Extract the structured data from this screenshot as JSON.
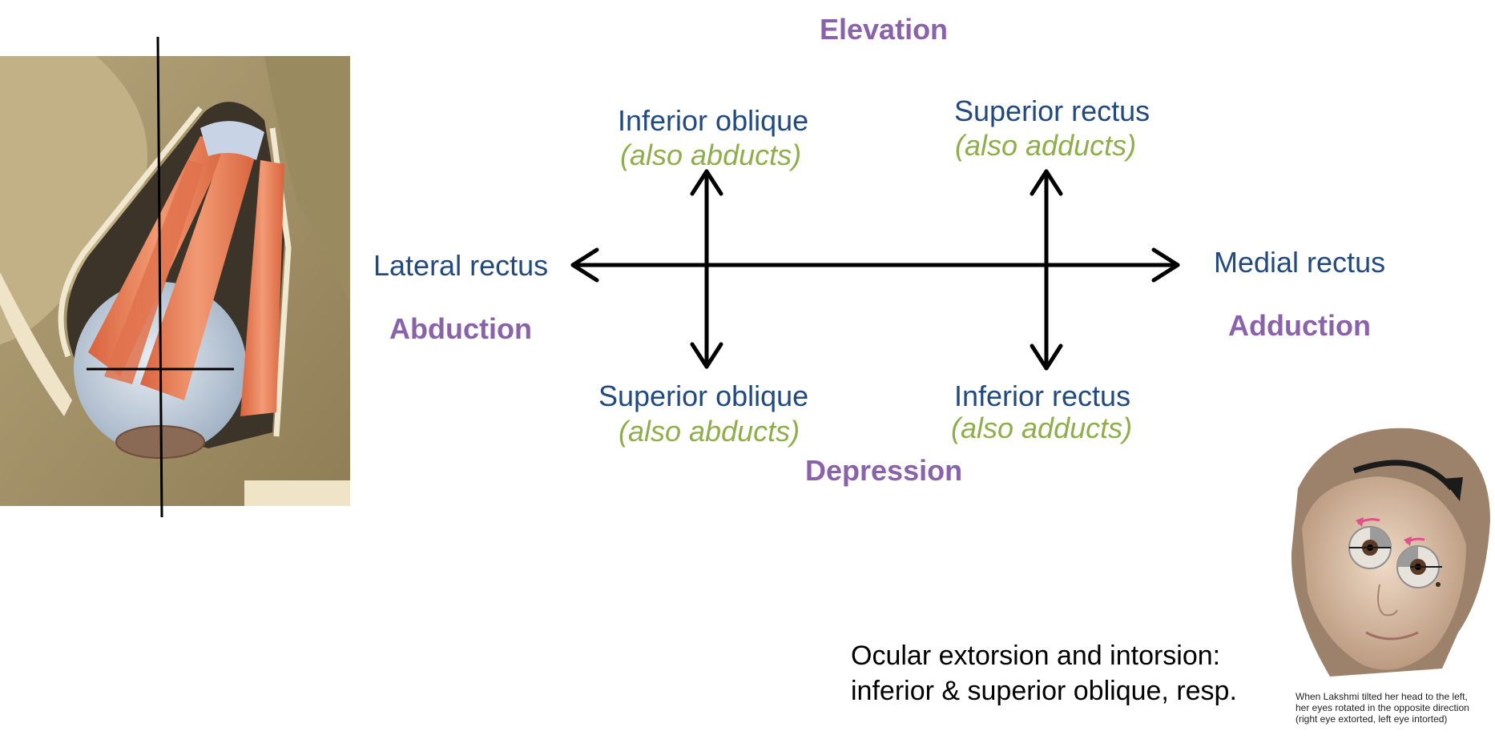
{
  "axis": {
    "elevation": "Elevation",
    "depression": "Depression",
    "abduction": "Abduction",
    "adduction": "Adduction"
  },
  "muscles": {
    "lateral_rectus": "Lateral rectus",
    "medial_rectus": "Medial rectus",
    "inferior_oblique": {
      "name": "Inferior oblique",
      "note": "(also abducts)"
    },
    "superior_rectus": {
      "name": "Superior rectus",
      "note": "(also adducts)"
    },
    "superior_oblique": {
      "name": "Superior oblique",
      "note": "(also abducts)"
    },
    "inferior_rectus": {
      "name": "Inferior rectus",
      "note": "(also adducts)"
    }
  },
  "torsion_caption": {
    "line1": "Ocular extorsion and intorsion:",
    "line2": "inferior & superior oblique, resp."
  },
  "figure_caption": {
    "line1": "When Lakshmi tilted her head to the left,",
    "line2": "her eyes rotated in the opposite direction",
    "line3": "(right eye extorted, left eye intorted)"
  },
  "colors": {
    "muscle_label": "#234a7e",
    "note_label": "#8fae4b",
    "motion_label": "#8a62a9",
    "arrow": "#000000",
    "muscle_fill": "#e8805a",
    "bone": "#a39168",
    "eyeball": "#c9d2dc",
    "skin": "#d2b79c"
  }
}
